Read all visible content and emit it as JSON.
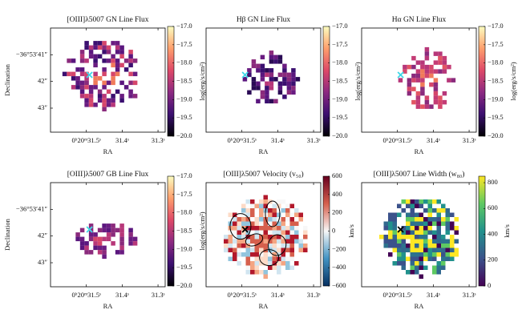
{
  "chart_data": [
    {
      "type": "image",
      "title": "[OIII]λ5007 GN Line Flux",
      "xlabel": "RA",
      "ylabel": "Declination",
      "xlim": [
        31.6,
        31.28
      ],
      "xticks": [
        {
          "value": 31.5,
          "label": "0ʰ20ᵐ31.5ˢ"
        },
        {
          "value": 31.4,
          "label": "31.4ˢ"
        },
        {
          "value": 31.3,
          "label": "31.3ˢ"
        }
      ],
      "ylim": [
        40.0,
        43.9
      ],
      "yticks": [
        {
          "value": 41,
          "label": "−36°53′41″"
        },
        {
          "value": 42,
          "label": "42″"
        },
        {
          "value": 43,
          "label": "43″"
        }
      ],
      "colorbar": {
        "label": "log(erg/s/cm²)",
        "colormap": "magma",
        "lim": [
          -20,
          -17
        ],
        "ticks": [
          {
            "value": -17,
            "label": "−17.0"
          },
          {
            "value": -17.5,
            "label": "−17.5"
          },
          {
            "value": -18,
            "label": "−18.0"
          },
          {
            "value": -18.5,
            "label": "−18.5"
          },
          {
            "value": -19,
            "label": "−19.0"
          },
          {
            "value": -19.5,
            "label": "−19.5"
          },
          {
            "value": -20,
            "label": "−20.0"
          }
        ]
      }
    },
    {
      "type": "image",
      "title": "Hβ GN Line Flux",
      "xlabel": "RA",
      "xlim": [
        31.6,
        31.28
      ],
      "xticks": [
        {
          "value": 31.5,
          "label": "0ʰ20ᵐ31.5ˢ"
        },
        {
          "value": 31.4,
          "label": "31.4ˢ"
        },
        {
          "value": 31.3,
          "label": "31.3ˢ"
        }
      ],
      "colorbar": {
        "label": "log(erg/s/cm²)",
        "colormap": "magma",
        "lim": [
          -20,
          -17
        ],
        "ticks": [
          {
            "value": -17,
            "label": "−17.0"
          },
          {
            "value": -17.5,
            "label": "−17.5"
          },
          {
            "value": -18,
            "label": "−18.0"
          },
          {
            "value": -18.5,
            "label": "−18.5"
          },
          {
            "value": -19,
            "label": "−19.0"
          },
          {
            "value": -19.5,
            "label": "−19.5"
          },
          {
            "value": -20,
            "label": "−20.0"
          }
        ]
      }
    },
    {
      "type": "image",
      "title": "Hα GN Line Flux",
      "xlabel": "RA",
      "xlim": [
        31.6,
        31.28
      ],
      "xticks": [
        {
          "value": 31.5,
          "label": "0ʰ20ᵐ31.5ˢ"
        },
        {
          "value": 31.4,
          "label": "31.4ˢ"
        },
        {
          "value": 31.3,
          "label": "31.3ˢ"
        }
      ],
      "colorbar": {
        "label": "log(erg/s/cm²)",
        "colormap": "magma",
        "lim": [
          -20,
          -17
        ],
        "ticks": [
          {
            "value": -17,
            "label": "−17.0"
          },
          {
            "value": -17.5,
            "label": "−17.5"
          },
          {
            "value": -18,
            "label": "−18.0"
          },
          {
            "value": -18.5,
            "label": "−18.5"
          },
          {
            "value": -19,
            "label": "−19.0"
          },
          {
            "value": -19.5,
            "label": "−19.5"
          },
          {
            "value": -20,
            "label": "−20.0"
          }
        ]
      }
    },
    {
      "type": "image",
      "title": "[OIII]λ5007 GB Line Flux",
      "xlabel": "RA",
      "ylabel": "Declination",
      "xlim": [
        31.6,
        31.28
      ],
      "xticks": [
        {
          "value": 31.5,
          "label": "0ʰ20ᵐ31.5ˢ"
        },
        {
          "value": 31.4,
          "label": "31.4ˢ"
        },
        {
          "value": 31.3,
          "label": "31.3ˢ"
        }
      ],
      "ylim": [
        40.0,
        43.9
      ],
      "yticks": [
        {
          "value": 41,
          "label": "−36°53′41″"
        },
        {
          "value": 42,
          "label": "42″"
        },
        {
          "value": 43,
          "label": "43″"
        }
      ],
      "colorbar": {
        "label": "log(erg/s/cm²)",
        "colormap": "magma",
        "lim": [
          -20,
          -17
        ],
        "ticks": [
          {
            "value": -17,
            "label": "−17.0"
          },
          {
            "value": -17.5,
            "label": "−17.5"
          },
          {
            "value": -18,
            "label": "−18.0"
          },
          {
            "value": -18.5,
            "label": "−18.5"
          },
          {
            "value": -19,
            "label": "−19.0"
          },
          {
            "value": -19.5,
            "label": "−19.5"
          },
          {
            "value": -20,
            "label": "−20.0"
          }
        ]
      }
    },
    {
      "type": "image",
      "title": "[OIII]λ5007 Velocity (v₅₀)",
      "xlabel": "RA",
      "xlim": [
        31.6,
        31.28
      ],
      "xticks": [
        {
          "value": 31.5,
          "label": "0ʰ20ᵐ31.5ˢ"
        },
        {
          "value": 31.4,
          "label": "31.4ˢ"
        },
        {
          "value": 31.3,
          "label": "31.3ˢ"
        }
      ],
      "colorbar": {
        "label": "km/s",
        "colormap": "RdBu_r",
        "lim": [
          -600,
          600
        ],
        "ticks": [
          600,
          400,
          200,
          0,
          {
            "value": -200,
            "label": "−200"
          },
          {
            "value": -400,
            "label": "−400"
          },
          {
            "value": -600,
            "label": "−600"
          }
        ]
      }
    },
    {
      "type": "image",
      "title": "[OIII]λ5007 Line Width (w₈₀)",
      "xlabel": "RA",
      "xlim": [
        31.6,
        31.28
      ],
      "xticks": [
        {
          "value": 31.5,
          "label": "0ʰ20ᵐ31.5ˢ"
        },
        {
          "value": 31.4,
          "label": "31.4ˢ"
        },
        {
          "value": 31.3,
          "label": "31.3ˢ"
        }
      ],
      "colorbar": {
        "label": "km/s",
        "colormap": "viridis",
        "lim": [
          0,
          850
        ],
        "ticks": [
          800,
          600,
          400,
          200,
          0
        ]
      }
    }
  ]
}
